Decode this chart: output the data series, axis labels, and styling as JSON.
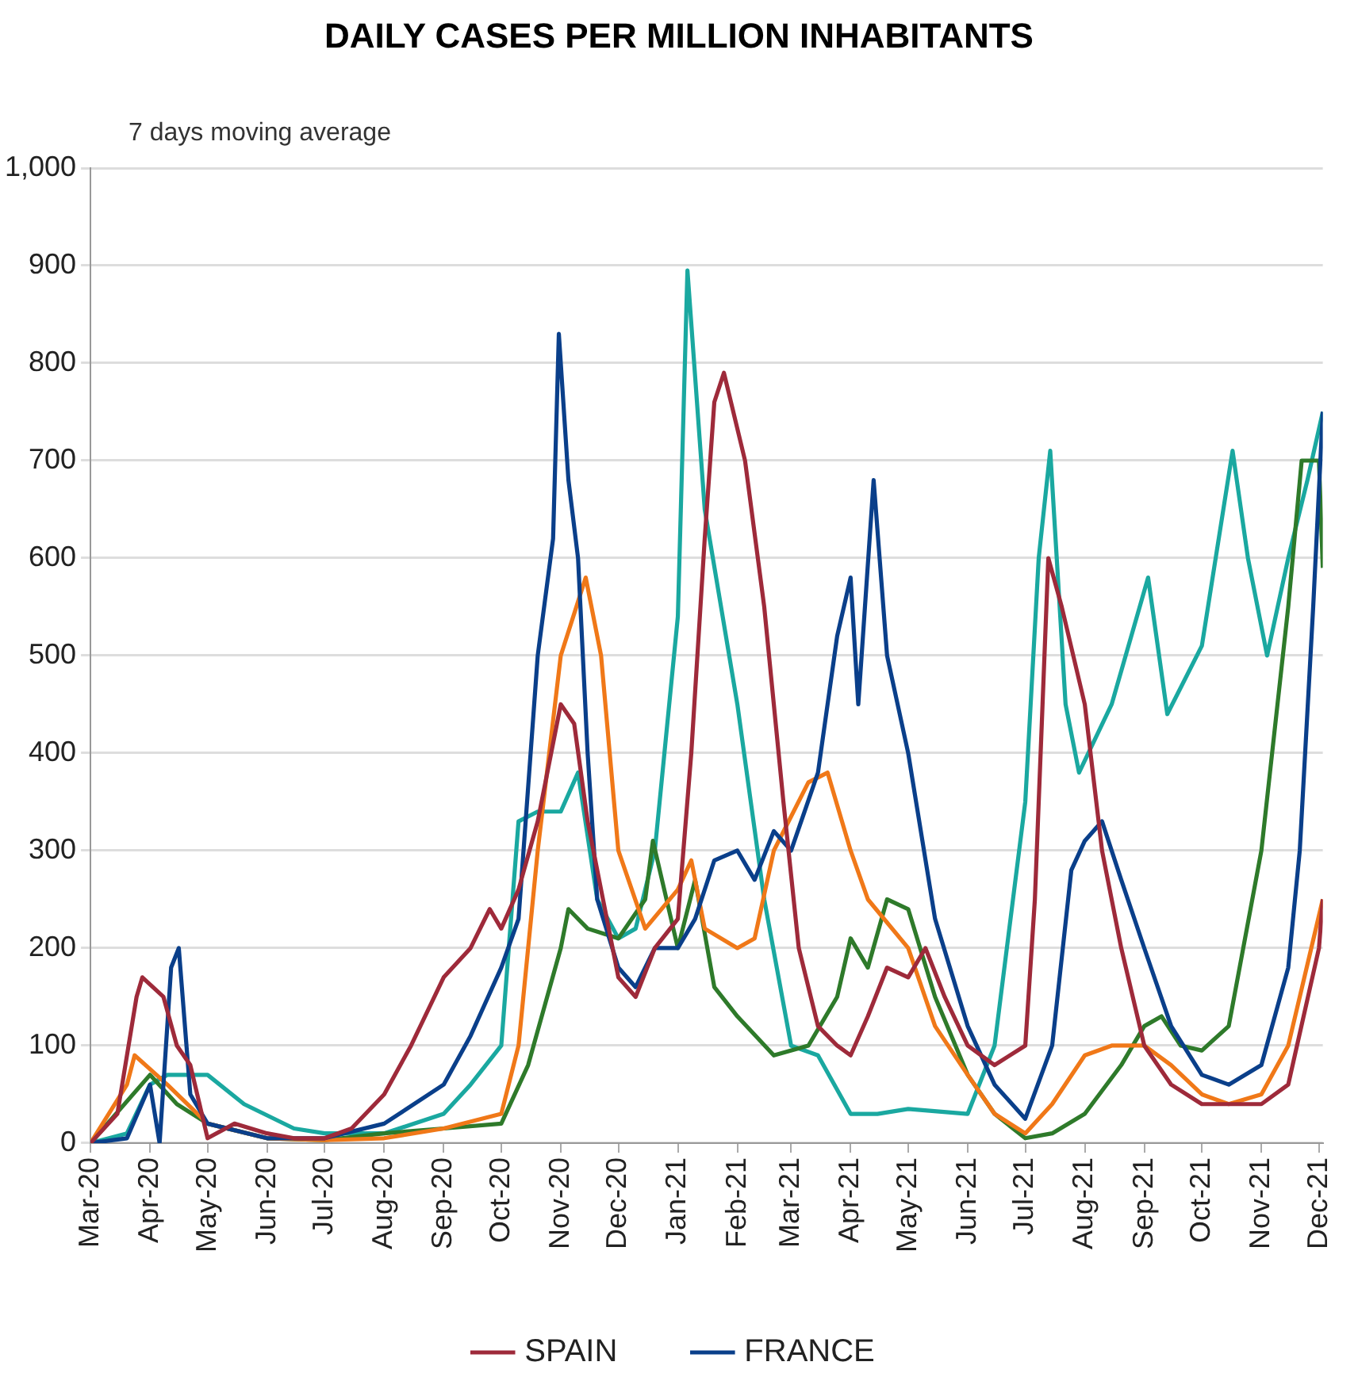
{
  "chart_data": {
    "type": "line",
    "title": "DAILY CASES PER MILLION INHABITANTS",
    "subtitle": "7 days moving average",
    "marker": "none",
    "line_style": "solid",
    "grid": "y",
    "legend": "bottom",
    "xlim": [
      "2020-03-01",
      "2021-12-03"
    ],
    "xticks": [
      {
        "value": "2020-03",
        "label": "Mar-20"
      },
      {
        "value": "2020-04",
        "label": "Apr-20"
      },
      {
        "value": "2020-05",
        "label": "May-20"
      },
      {
        "value": "2020-06",
        "label": "Jun-20"
      },
      {
        "value": "2020-07",
        "label": "Jul-20"
      },
      {
        "value": "2020-08",
        "label": "Aug-20"
      },
      {
        "value": "2020-09",
        "label": "Sep-20"
      },
      {
        "value": "2020-10",
        "label": "Oct-20"
      },
      {
        "value": "2020-11",
        "label": "Nov-20"
      },
      {
        "value": "2020-12",
        "label": "Dec-20"
      },
      {
        "value": "2021-01",
        "label": "Jan-21"
      },
      {
        "value": "2021-02",
        "label": "Feb-21"
      },
      {
        "value": "2021-03",
        "label": "Mar-21"
      },
      {
        "value": "2021-04",
        "label": "Apr-21"
      },
      {
        "value": "2021-05",
        "label": "May-21"
      },
      {
        "value": "2021-06",
        "label": "Jun-21"
      },
      {
        "value": "2021-07",
        "label": "Jul-21"
      },
      {
        "value": "2021-08",
        "label": "Aug-21"
      },
      {
        "value": "2021-09",
        "label": "Sep-21"
      },
      {
        "value": "2021-10",
        "label": "Oct-21"
      },
      {
        "value": "2021-11",
        "label": "Nov-21"
      },
      {
        "value": "2021-12",
        "label": "Dec-21"
      }
    ],
    "ylim": [
      0,
      1000
    ],
    "yticks": [
      0,
      100,
      200,
      300,
      400,
      500,
      600,
      700,
      800,
      900,
      {
        "value": 1000,
        "label": "1,000"
      }
    ],
    "series": [
      {
        "name": "SPAIN",
        "color": "#9e2a3a",
        "x": [
          "2020-03-01",
          "2020-03-15",
          "2020-03-25",
          "2020-03-28",
          "2020-04-08",
          "2020-04-15",
          "2020-04-22",
          "2020-05-01",
          "2020-05-15",
          "2020-06-01",
          "2020-06-15",
          "2020-07-01",
          "2020-07-15",
          "2020-08-01",
          "2020-08-15",
          "2020-09-01",
          "2020-09-15",
          "2020-09-25",
          "2020-10-01",
          "2020-10-10",
          "2020-10-20",
          "2020-11-01",
          "2020-11-08",
          "2020-11-15",
          "2020-11-25",
          "2020-12-01",
          "2020-12-10",
          "2020-12-20",
          "2021-01-01",
          "2021-01-08",
          "2021-01-15",
          "2021-01-20",
          "2021-01-25",
          "2021-02-05",
          "2021-02-15",
          "2021-02-25",
          "2021-03-05",
          "2021-03-15",
          "2021-03-25",
          "2021-04-01",
          "2021-04-10",
          "2021-04-20",
          "2021-05-01",
          "2021-05-10",
          "2021-05-20",
          "2021-06-01",
          "2021-06-15",
          "2021-07-01",
          "2021-07-06",
          "2021-07-10",
          "2021-07-13",
          "2021-07-20",
          "2021-08-01",
          "2021-08-10",
          "2021-08-20",
          "2021-09-01",
          "2021-09-15",
          "2021-10-01",
          "2021-10-15",
          "2021-11-01",
          "2021-11-15",
          "2021-12-01",
          "2021-12-03"
        ],
        "values": [
          0,
          30,
          150,
          170,
          150,
          100,
          80,
          5,
          20,
          10,
          5,
          5,
          15,
          50,
          100,
          170,
          200,
          240,
          220,
          260,
          330,
          450,
          430,
          330,
          230,
          170,
          150,
          200,
          230,
          400,
          620,
          760,
          790,
          700,
          550,
          350,
          200,
          120,
          100,
          90,
          130,
          180,
          170,
          200,
          150,
          100,
          80,
          100,
          250,
          450,
          600,
          550,
          450,
          300,
          200,
          100,
          60,
          40,
          40,
          40,
          60,
          200,
          250
        ]
      },
      {
        "name": "FRANCE",
        "color": "#0a3f8a",
        "x": [
          "2020-03-01",
          "2020-03-20",
          "2020-04-01",
          "2020-04-06",
          "2020-04-12",
          "2020-04-16",
          "2020-04-22",
          "2020-05-01",
          "2020-06-01",
          "2020-07-01",
          "2020-08-01",
          "2020-09-01",
          "2020-09-15",
          "2020-10-01",
          "2020-10-10",
          "2020-10-20",
          "2020-10-28",
          "2020-10-31",
          "2020-11-05",
          "2020-11-10",
          "2020-11-15",
          "2020-11-20",
          "2020-12-01",
          "2020-12-10",
          "2020-12-20",
          "2021-01-01",
          "2021-01-10",
          "2021-01-20",
          "2021-02-01",
          "2021-02-10",
          "2021-02-20",
          "2021-03-01",
          "2021-03-15",
          "2021-03-25",
          "2021-04-01",
          "2021-04-05",
          "2021-04-13",
          "2021-04-20",
          "2021-05-01",
          "2021-05-15",
          "2021-06-01",
          "2021-06-15",
          "2021-07-01",
          "2021-07-15",
          "2021-07-25",
          "2021-08-01",
          "2021-08-10",
          "2021-08-20",
          "2021-09-01",
          "2021-09-15",
          "2021-10-01",
          "2021-10-15",
          "2021-11-01",
          "2021-11-15",
          "2021-11-21",
          "2021-11-28",
          "2021-12-03"
        ],
        "values": [
          0,
          5,
          60,
          0,
          180,
          200,
          50,
          20,
          5,
          5,
          20,
          60,
          110,
          180,
          230,
          500,
          620,
          830,
          680,
          600,
          400,
          250,
          180,
          160,
          200,
          200,
          230,
          290,
          300,
          270,
          320,
          300,
          380,
          520,
          580,
          450,
          680,
          500,
          400,
          230,
          120,
          60,
          25,
          100,
          280,
          310,
          330,
          270,
          200,
          120,
          70,
          60,
          80,
          180,
          300,
          550,
          750
        ]
      },
      {
        "color": "#f07818",
        "x": [
          "2020-03-01",
          "2020-03-20",
          "2020-03-24",
          "2020-04-10",
          "2020-05-01",
          "2020-06-01",
          "2020-07-01",
          "2020-08-01",
          "2020-09-01",
          "2020-10-01",
          "2020-10-10",
          "2020-10-20",
          "2020-11-01",
          "2020-11-14",
          "2020-11-22",
          "2020-12-01",
          "2020-12-15",
          "2021-01-01",
          "2021-01-08",
          "2021-01-15",
          "2021-02-01",
          "2021-02-10",
          "2021-02-20",
          "2021-03-10",
          "2021-03-20",
          "2021-04-01",
          "2021-04-10",
          "2021-05-01",
          "2021-05-15",
          "2021-06-01",
          "2021-06-15",
          "2021-07-01",
          "2021-07-15",
          "2021-08-01",
          "2021-08-15",
          "2021-09-01",
          "2021-09-15",
          "2021-10-01",
          "2021-10-15",
          "2021-11-01",
          "2021-11-15",
          "2021-12-03"
        ],
        "values": [
          0,
          60,
          90,
          60,
          20,
          5,
          3,
          5,
          15,
          30,
          100,
          300,
          500,
          580,
          500,
          300,
          220,
          260,
          290,
          220,
          200,
          210,
          300,
          370,
          380,
          300,
          250,
          200,
          120,
          70,
          30,
          10,
          40,
          90,
          100,
          100,
          80,
          50,
          40,
          50,
          100,
          250
        ]
      },
      {
        "color": "#2e7a2a",
        "x": [
          "2020-03-01",
          "2020-04-01",
          "2020-04-15",
          "2020-05-01",
          "2020-06-01",
          "2020-07-01",
          "2020-08-01",
          "2020-09-01",
          "2020-10-01",
          "2020-10-15",
          "2020-11-01",
          "2020-11-05",
          "2020-11-15",
          "2020-12-01",
          "2020-12-15",
          "2020-12-19",
          "2021-01-01",
          "2021-01-10",
          "2021-01-20",
          "2021-02-01",
          "2021-02-20",
          "2021-03-10",
          "2021-03-25",
          "2021-04-01",
          "2021-04-10",
          "2021-04-20",
          "2021-05-01",
          "2021-05-15",
          "2021-06-01",
          "2021-06-15",
          "2021-07-01",
          "2021-07-15",
          "2021-08-01",
          "2021-08-20",
          "2021-09-01",
          "2021-09-10",
          "2021-09-20",
          "2021-10-01",
          "2021-10-15",
          "2021-11-01",
          "2021-11-15",
          "2021-11-22",
          "2021-12-01",
          "2021-12-03"
        ],
        "values": [
          0,
          70,
          40,
          20,
          5,
          3,
          10,
          15,
          20,
          80,
          200,
          240,
          220,
          210,
          250,
          310,
          200,
          270,
          160,
          130,
          90,
          100,
          150,
          210,
          180,
          250,
          240,
          150,
          70,
          30,
          5,
          10,
          30,
          80,
          120,
          130,
          100,
          95,
          120,
          300,
          550,
          700,
          700,
          590
        ]
      },
      {
        "color": "#1aa8a0",
        "x": [
          "2020-03-01",
          "2020-03-20",
          "2020-04-01",
          "2020-04-10",
          "2020-05-01",
          "2020-05-20",
          "2020-06-15",
          "2020-07-01",
          "2020-08-01",
          "2020-09-01",
          "2020-09-15",
          "2020-10-01",
          "2020-10-10",
          "2020-10-20",
          "2020-11-01",
          "2020-11-10",
          "2020-11-20",
          "2020-12-01",
          "2020-12-10",
          "2020-12-20",
          "2021-01-01",
          "2021-01-06",
          "2021-01-15",
          "2021-02-01",
          "2021-02-15",
          "2021-03-01",
          "2021-03-15",
          "2021-04-01",
          "2021-04-15",
          "2021-05-01",
          "2021-06-01",
          "2021-06-15",
          "2021-07-01",
          "2021-07-08",
          "2021-07-14",
          "2021-07-22",
          "2021-07-29",
          "2021-08-15",
          "2021-09-03",
          "2021-09-13",
          "2021-10-01",
          "2021-10-17",
          "2021-10-25",
          "2021-11-04",
          "2021-11-15",
          "2021-11-25",
          "2021-12-03"
        ],
        "values": [
          0,
          10,
          60,
          70,
          70,
          40,
          15,
          10,
          10,
          30,
          60,
          100,
          330,
          340,
          340,
          380,
          250,
          210,
          220,
          300,
          540,
          895,
          650,
          450,
          250,
          100,
          90,
          30,
          30,
          35,
          30,
          100,
          350,
          600,
          710,
          450,
          380,
          450,
          580,
          440,
          510,
          710,
          600,
          500,
          600,
          680,
          750
        ]
      }
    ]
  }
}
